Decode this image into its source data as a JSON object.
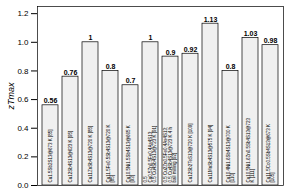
{
  "chart_data": {
    "type": "bar",
    "ylabel": "zTmax",
    "categories": [
      "Cu1.5Sb2S13@673 K [85]",
      "Cu12Sb4S13@623 K [95]",
      "Cu11ZnSb4S13@720 K [85]",
      "Cu11.5Fe0.5Sb4S13@720 K [85]",
      "Cu10.5Ni1.5Sb4S13@665 K [93]",
      "0.5 Cu0.5Zn0.5Fe0.4As4S13; 0.5 Cu4Sb4S13@723 K [91]",
      "0.5 Cu2Zn0.5Fe0.4As4S13; 0.5 Cu4Sb4S13@723 K 4 h ball milling [92]",
      "Cu12Sb2TeS13@720 K [109]",
      "Cu11MnSb4S13@575 K [94]",
      "Cu10.4Ni1.6Sb4S13@700 K [110]",
      "Cu10.5Ni1.6Zn0.5Sb4S13@723 K [111]",
      "Cu11.5Co0.5Sb4S13@673 K [105]"
    ],
    "values": [
      0.56,
      0.76,
      1.0,
      0.8,
      0.7,
      1.0,
      0.9,
      0.92,
      1.13,
      0.8,
      1.03,
      0.98
    ],
    "value_labels": [
      "0.56",
      "0.76",
      "1",
      "0.8",
      "0.7",
      "1",
      "0.9",
      "0.92",
      "1.13",
      "0.8",
      "1.03",
      "0.98"
    ],
    "data_labels": true,
    "color": "#f0f0f0",
    "ylim": [
      0.0,
      1.25
    ],
    "yticks": [
      {
        "value": 0.0,
        "label": "0.0"
      },
      0.2,
      0.4,
      0.6,
      0.8,
      {
        "value": 1.0,
        "label": "1.0"
      },
      1.2
    ],
    "grid": false,
    "tick_labels": "y"
  }
}
